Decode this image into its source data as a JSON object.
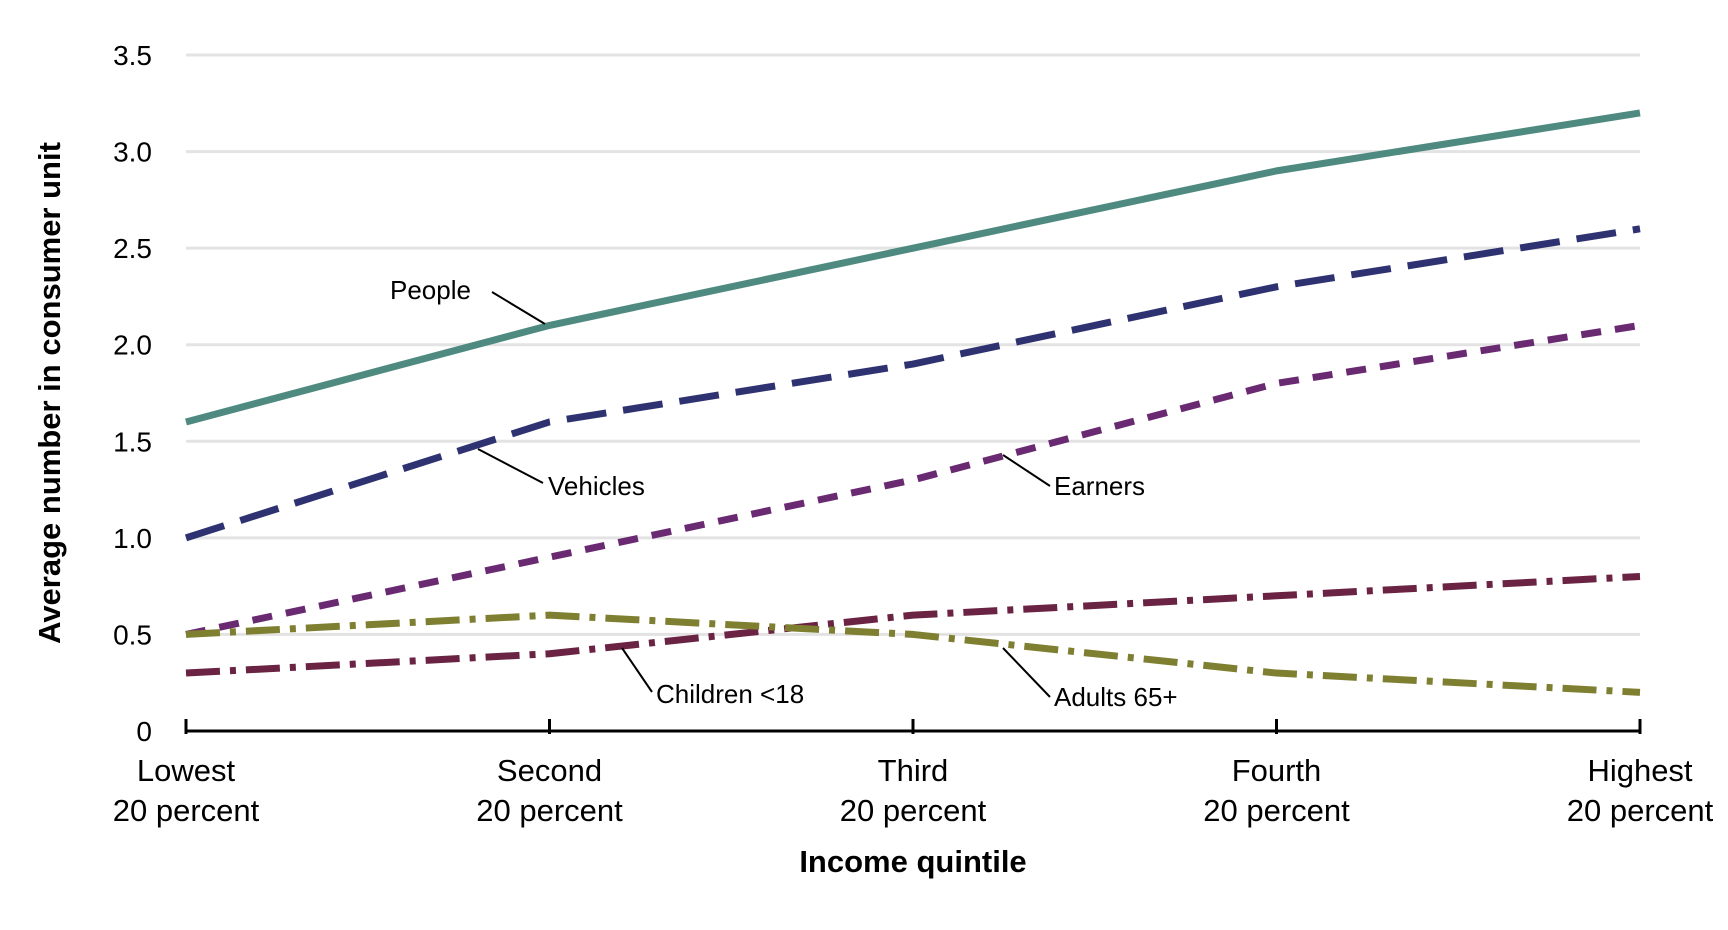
{
  "chart_data": {
    "type": "line",
    "title": "",
    "xlabel": "Income quintile",
    "ylabel": "Average number in consumer unit",
    "ylim": [
      0,
      3.5
    ],
    "yticks": [
      "0",
      "0.5",
      "1.0",
      "1.5",
      "2.0",
      "2.5",
      "3.0",
      "3.5"
    ],
    "ytick_values": [
      0,
      0.5,
      1.0,
      1.5,
      2.0,
      2.5,
      3.0,
      3.5
    ],
    "grid": "horizontal",
    "legend": "inline labels",
    "categories": [
      [
        "Lowest",
        "20 percent"
      ],
      [
        "Second",
        "20 percent"
      ],
      [
        "Third",
        "20 percent"
      ],
      [
        "Fourth",
        "20 percent"
      ],
      [
        "Highest",
        "20 percent"
      ]
    ],
    "series": [
      {
        "name": "People",
        "values": [
          1.6,
          2.1,
          2.5,
          2.9,
          3.2
        ],
        "color": "#4f8a80",
        "dash": "solid"
      },
      {
        "name": "Vehicles",
        "values": [
          1.0,
          1.6,
          1.9,
          2.3,
          2.6
        ],
        "color": "#2f3271",
        "dash": "long-dash"
      },
      {
        "name": "Earners",
        "values": [
          0.5,
          0.9,
          1.3,
          1.8,
          2.1
        ],
        "color": "#6a2a72",
        "dash": "short-dash"
      },
      {
        "name": "Children <18",
        "values": [
          0.3,
          0.4,
          0.6,
          0.7,
          0.8
        ],
        "color": "#6a2343",
        "dash": "dash-dot"
      },
      {
        "name": "Adults 65+",
        "values": [
          0.5,
          0.6,
          0.5,
          0.3,
          0.2
        ],
        "color": "#7f7f31",
        "dash": "dash-dot"
      }
    ]
  }
}
